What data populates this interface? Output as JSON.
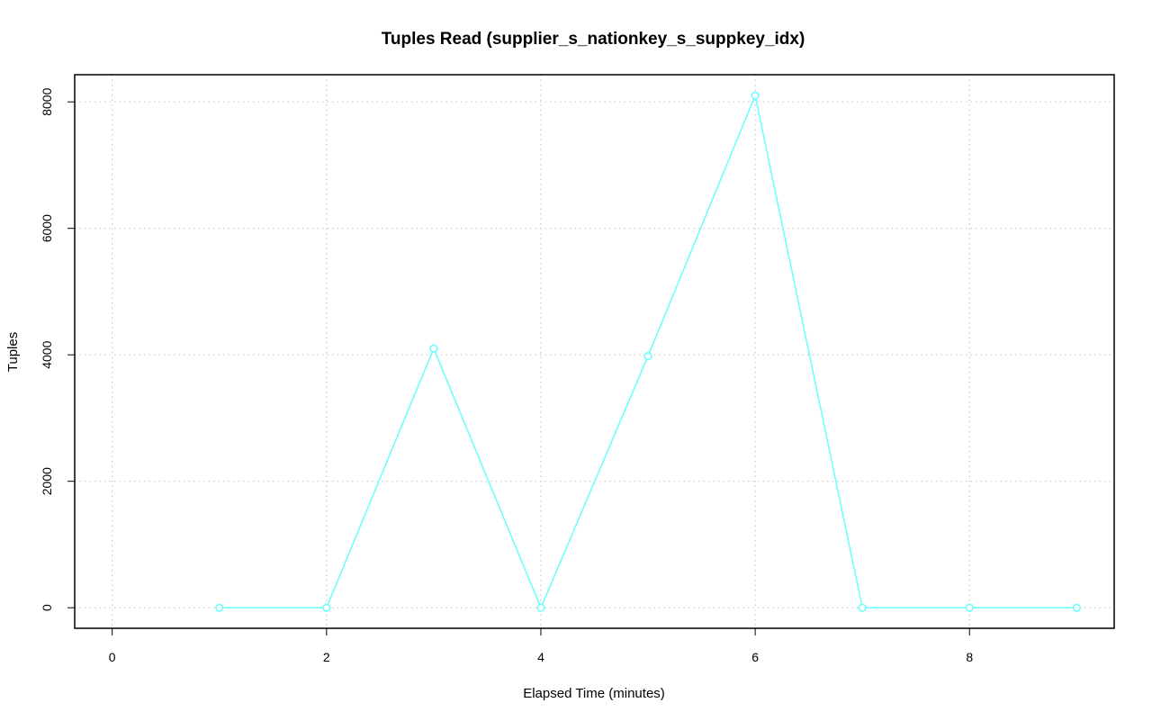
{
  "chart_data": {
    "type": "line",
    "title": "Tuples Read (supplier_s_nationkey_s_suppkey_idx)",
    "xlabel": "Elapsed Time (minutes)",
    "ylabel": "Tuples",
    "xlim": [
      -0.35,
      9.35
    ],
    "ylim": [
      -325,
      8430
    ],
    "xticks": [
      0,
      2,
      4,
      6,
      8
    ],
    "yticks": [
      0,
      2000,
      4000,
      6000,
      8000
    ],
    "xtick_labels": [
      "0",
      "2",
      "4",
      "6",
      "8"
    ],
    "ytick_labels": [
      "0",
      "2000",
      "4000",
      "6000",
      "8000"
    ],
    "grid": true,
    "series": [
      {
        "color": "#66ffff",
        "marker": "open-circle",
        "x": [
          1,
          2,
          3,
          4,
          5,
          6,
          7,
          8,
          9
        ],
        "y": [
          0,
          0,
          4100,
          0,
          3980,
          8100,
          0,
          0,
          0
        ]
      }
    ]
  }
}
